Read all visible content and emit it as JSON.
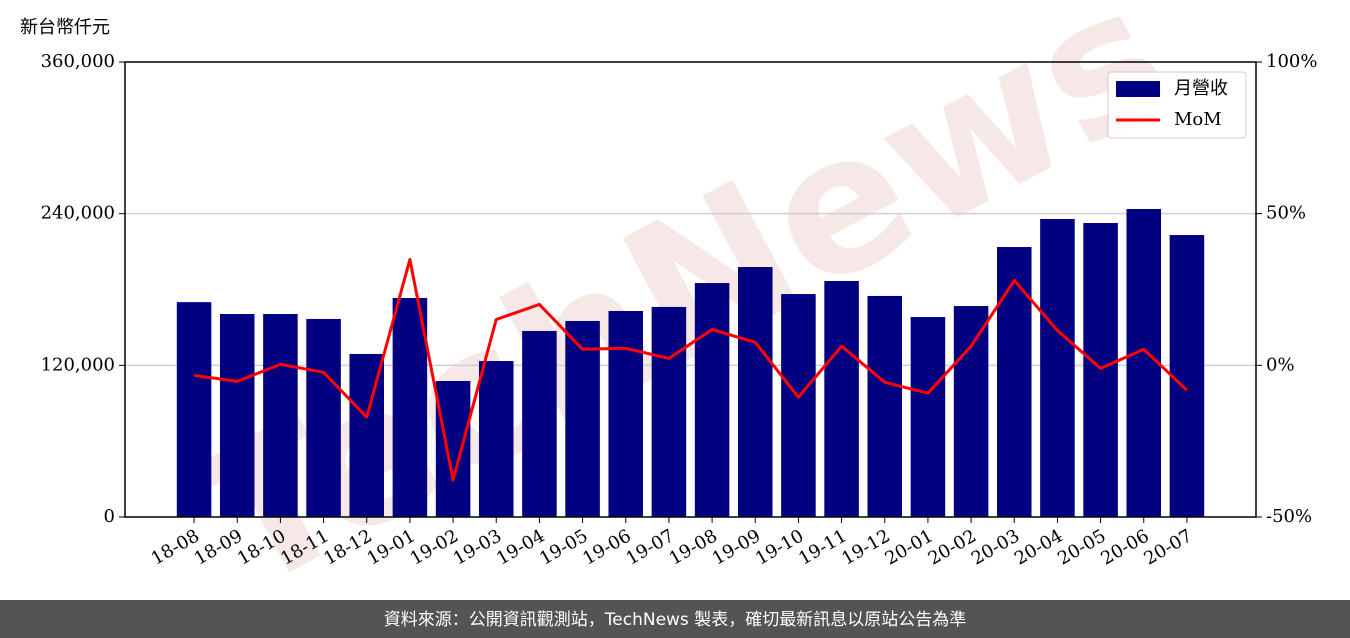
{
  "chart_data": {
    "type": "bar_line",
    "y_axis_label": "新台幣仟元",
    "watermark": "TechNews",
    "footer": "資料來源：公開資訊觀測站，TechNews 製表，確切最新訊息以原站公告為準",
    "categories": [
      "18-08",
      "18-09",
      "18-10",
      "18-11",
      "18-12",
      "19-01",
      "19-02",
      "19-03",
      "19-04",
      "19-05",
      "19-06",
      "19-07",
      "19-08",
      "19-09",
      "19-10",
      "19-11",
      "19-12",
      "20-01",
      "20-02",
      "20-03",
      "20-04",
      "20-05",
      "20-06",
      "20-07"
    ],
    "series": [
      {
        "name": "月營收",
        "type": "bar",
        "color": "#000080",
        "values": [
          170000,
          160600,
          160600,
          156700,
          129000,
          173300,
          107600,
          123400,
          147200,
          155100,
          163000,
          166200,
          185100,
          197800,
          176400,
          186700,
          174900,
          158200,
          166900,
          213600,
          235800,
          232600,
          243700,
          223100
        ]
      },
      {
        "name": "MoM",
        "type": "line",
        "axis": "y2",
        "color": "#ff0000",
        "values": [
          -3.3,
          -5.3,
          0.3,
          -2.3,
          -17.1,
          34.9,
          -37.8,
          15.1,
          20.1,
          5.3,
          5.6,
          2.3,
          11.8,
          7.6,
          -10.5,
          6.3,
          -5.6,
          -9.2,
          6.3,
          28.0,
          11.5,
          -1.0,
          5.3,
          -8.2
        ]
      }
    ],
    "ylim": [
      0,
      360000
    ],
    "yticks": [
      0,
      {
        "value": 120000,
        "label": "120,000"
      },
      {
        "value": 240000,
        "label": "240,000"
      },
      {
        "value": 360000,
        "label": "360,000"
      }
    ],
    "y2lim": [
      -50,
      100
    ],
    "y2ticks": [
      {
        "value": -50,
        "label": "-50%"
      },
      {
        "value": 0,
        "label": "0%"
      },
      {
        "value": 50,
        "label": "50%"
      },
      {
        "value": 100,
        "label": "100%"
      }
    ],
    "grid": true,
    "legend": "upper right"
  }
}
